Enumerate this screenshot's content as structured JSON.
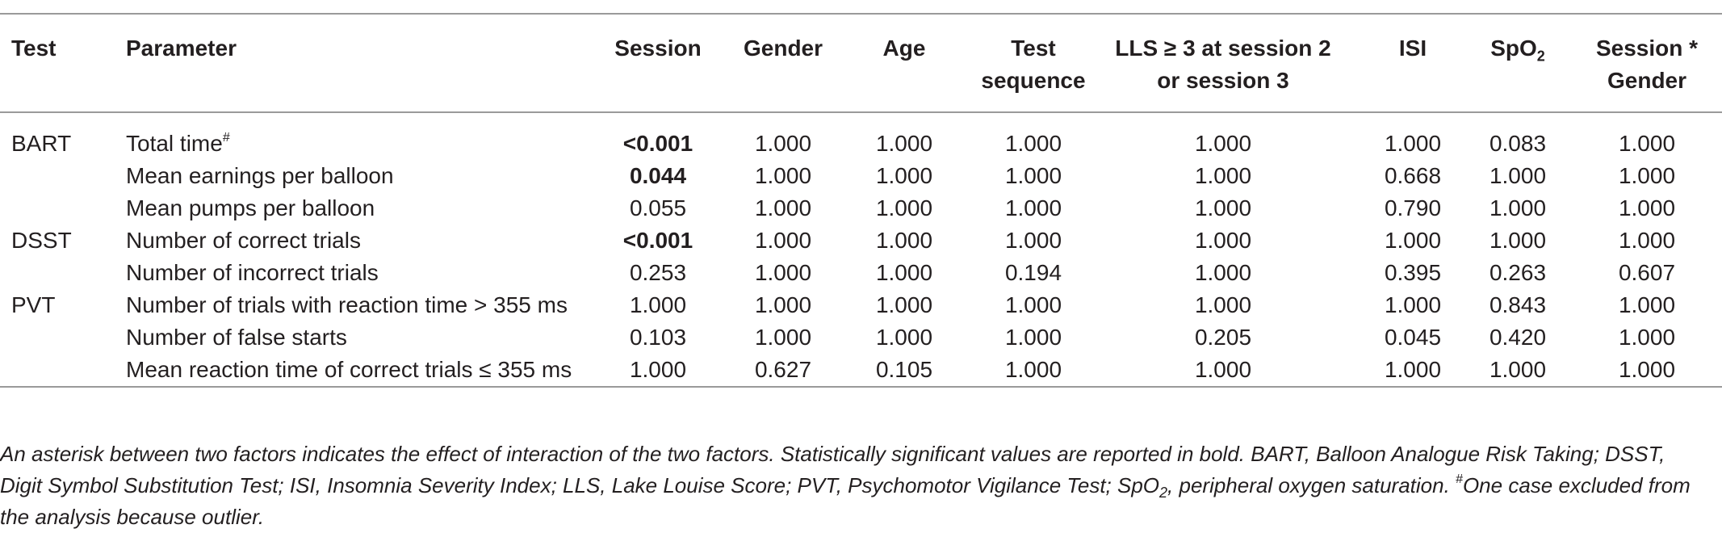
{
  "table": {
    "headers": {
      "test": "Test",
      "parameter": "Parameter",
      "session": "Session",
      "gender": "Gender",
      "age": "Age",
      "test_sequence_1": "Test",
      "test_sequence_2": "sequence",
      "lls_1": "LLS ≥ 3 at session 2",
      "lls_2": "or session 3",
      "isi": "ISI",
      "spo2_main": "SpO",
      "spo2_sub": "2",
      "session_gender_1": "Session *",
      "session_gender_2": "Gender"
    },
    "rows": [
      {
        "test": "BART",
        "parameter": "Total time",
        "parameter_sup": "#",
        "session": "<0.001",
        "session_bold": true,
        "gender": "1.000",
        "age": "1.000",
        "test_sequence": "1.000",
        "lls": "1.000",
        "isi": "1.000",
        "spo2": "0.083",
        "session_gender": "1.000"
      },
      {
        "test": "",
        "parameter": "Mean earnings per balloon",
        "parameter_sup": "",
        "session": "0.044",
        "session_bold": true,
        "gender": "1.000",
        "age": "1.000",
        "test_sequence": "1.000",
        "lls": "1.000",
        "isi": "0.668",
        "spo2": "1.000",
        "session_gender": "1.000"
      },
      {
        "test": "",
        "parameter": "Mean pumps per balloon",
        "parameter_sup": "",
        "session": "0.055",
        "session_bold": false,
        "gender": "1.000",
        "age": "1.000",
        "test_sequence": "1.000",
        "lls": "1.000",
        "isi": "0.790",
        "spo2": "1.000",
        "session_gender": "1.000"
      },
      {
        "test": "DSST",
        "parameter": "Number of correct trials",
        "parameter_sup": "",
        "session": "<0.001",
        "session_bold": true,
        "gender": "1.000",
        "age": "1.000",
        "test_sequence": "1.000",
        "lls": "1.000",
        "isi": "1.000",
        "spo2": "1.000",
        "session_gender": "1.000"
      },
      {
        "test": "",
        "parameter": "Number of incorrect trials",
        "parameter_sup": "",
        "session": "0.253",
        "session_bold": false,
        "gender": "1.000",
        "age": "1.000",
        "test_sequence": "0.194",
        "lls": "1.000",
        "isi": "0.395",
        "spo2": "0.263",
        "session_gender": "0.607"
      },
      {
        "test": "PVT",
        "parameter": "Number of trials with reaction time > 355 ms",
        "parameter_sup": "",
        "session": "1.000",
        "session_bold": false,
        "gender": "1.000",
        "age": "1.000",
        "test_sequence": "1.000",
        "lls": "1.000",
        "isi": "1.000",
        "spo2": "0.843",
        "session_gender": "1.000"
      },
      {
        "test": "",
        "parameter": "Number of false starts",
        "parameter_sup": "",
        "session": "0.103",
        "session_bold": false,
        "gender": "1.000",
        "age": "1.000",
        "test_sequence": "1.000",
        "lls": "0.205",
        "isi": "0.045",
        "spo2": "0.420",
        "session_gender": "1.000"
      },
      {
        "test": "",
        "parameter": "Mean reaction time of correct trials ≤ 355 ms",
        "parameter_sup": "",
        "session": "1.000",
        "session_bold": false,
        "gender": "0.627",
        "age": "0.105",
        "test_sequence": "1.000",
        "lls": "1.000",
        "isi": "1.000",
        "spo2": "1.000",
        "session_gender": "1.000"
      }
    ]
  },
  "footnote": {
    "part1": "An asterisk between two factors indicates the effect of interaction of the two factors. Statistically significant values are reported in bold. BART, Balloon Analogue Risk Taking; DSST, Digit Symbol Substitution Test; ISI, Insomnia Severity Index; LLS, Lake Louise Score; PVT, Psychomotor Vigilance Test; SpO",
    "sub": "2",
    "part2": ", peripheral oxygen saturation. ",
    "sup": "#",
    "part3": "One case excluded from the analysis because outlier."
  }
}
